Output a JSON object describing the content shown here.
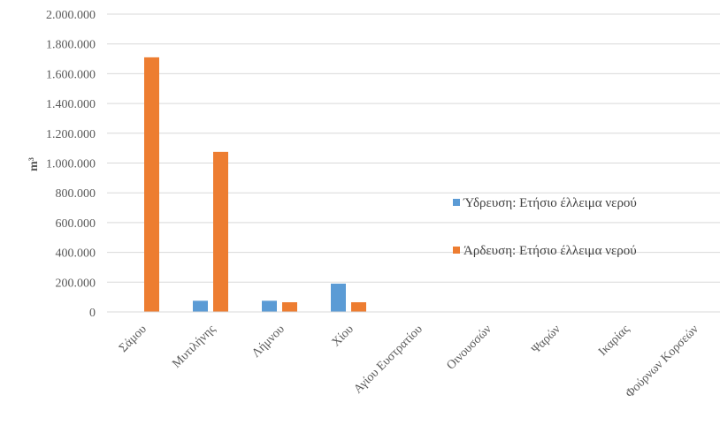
{
  "chart_data": {
    "type": "bar",
    "categories": [
      "Σάμου",
      "Μυτιλήνης",
      "Λήμνου",
      "Χίου",
      "Αγίου Ευστρατίου",
      "Οινουσσών",
      "Ψαρών",
      "Ικαρίας",
      "Φούρνων Κορσεών"
    ],
    "series": [
      {
        "name": "Ύδρευση: Ετήσιο έλλειμα νερού",
        "color": "#5b9bd5",
        "values": [
          0,
          75000,
          75000,
          190000,
          0,
          0,
          0,
          0,
          0
        ]
      },
      {
        "name": "Άρδευση: Ετήσιο έλλειμα νερού",
        "color": "#ed7d31",
        "values": [
          1710000,
          1075000,
          65000,
          65000,
          0,
          0,
          0,
          0,
          0
        ]
      }
    ],
    "ylabel": "m³",
    "xlabel": "",
    "ylim": [
      0,
      2000000
    ],
    "yticks": [
      "0",
      "200.000",
      "400.000",
      "600.000",
      "800.000",
      "1.000.000",
      "1.200.000",
      "1.400.000",
      "1.600.000",
      "1.800.000",
      "2.000.000"
    ],
    "grid": true,
    "legend_position": "right"
  }
}
